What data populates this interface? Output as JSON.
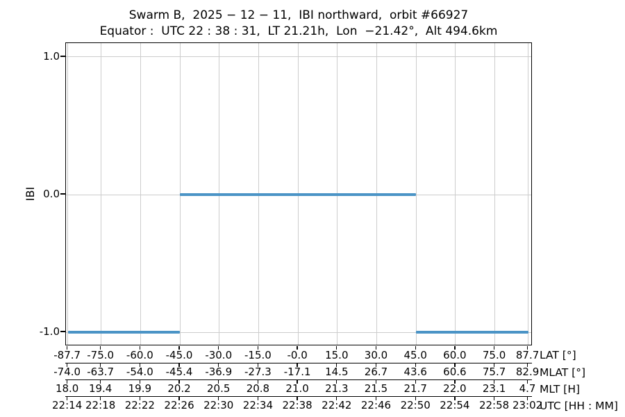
{
  "figure": {
    "title": "Swarm B,  2025 − 12 − 11,  IBI northward,  orbit #66927",
    "subtitle": "Equator :  UTC 22 : 38 : 31,  LT 21.21h,  Lon  −21.42°,  Alt 494.6km"
  },
  "chart_data": {
    "type": "line",
    "title": "Swarm B, 2025-12-11, IBI northward, orbit #66927",
    "subtitle": "Equator: UTC 22:38:31, LT 21.21h, Lon -21.42°, Alt 494.6km",
    "ylabel": "IBI",
    "ylim": [
      -1.1,
      1.1
    ],
    "xlim_lat": [
      -88.4,
      89.4
    ],
    "grid": true,
    "legend": "none",
    "yticks": [
      {
        "value": 1.0,
        "label": "1.0"
      },
      {
        "value": 0.0,
        "label": "0.0"
      },
      {
        "value": -1.0,
        "label": "-1.0"
      }
    ],
    "x_tick_lat_values": [
      -87.7,
      -75.0,
      -60.0,
      -45.0,
      -30.0,
      -15.0,
      0.0,
      15.0,
      30.0,
      45.0,
      60.0,
      75.0,
      87.7
    ],
    "x_axes": [
      {
        "label": "LAT [°]",
        "ticks": [
          "-87.7",
          "-75.0",
          "-60.0",
          "-45.0",
          "-30.0",
          "-15.0",
          "-0.0",
          "15.0",
          "30.0",
          "45.0",
          "60.0",
          "75.0",
          "87.7"
        ]
      },
      {
        "label": "MLAT [°]",
        "ticks": [
          "-74.0",
          "-63.7",
          "-54.0",
          "-45.4",
          "-36.9",
          "-27.3",
          "-17.1",
          "14.5",
          "26.7",
          "43.6",
          "60.6",
          "75.7",
          "82.9"
        ]
      },
      {
        "label": "MLT [H]",
        "ticks": [
          "18.0",
          "19.4",
          "19.9",
          "20.2",
          "20.5",
          "20.8",
          "21.0",
          "21.3",
          "21.5",
          "21.7",
          "22.0",
          "23.1",
          "4.7"
        ]
      },
      {
        "label": "UTC [HH : MM]",
        "ticks": [
          "22:14",
          "22:18",
          "22:22",
          "22:26",
          "22:30",
          "22:34",
          "22:38",
          "22:42",
          "22:46",
          "22:50",
          "22:54",
          "22:58",
          "23:02"
        ]
      }
    ],
    "series": [
      {
        "name": "IBI",
        "color": "#4b94c6",
        "segments": [
          {
            "lat_start": -87.7,
            "lat_end": -45.0,
            "value": -1.0,
            "utc_start": "22:14",
            "utc_end": "22:26"
          },
          {
            "lat_start": -45.0,
            "lat_end": 45.0,
            "value": 0.0,
            "utc_start": "22:26",
            "utc_end": "22:50"
          },
          {
            "lat_start": 45.0,
            "lat_end": 87.7,
            "value": -1.0,
            "utc_start": "22:50",
            "utc_end": "23:02"
          }
        ]
      }
    ]
  },
  "style": {
    "background": "#ffffff",
    "grid_color": "#cccccc",
    "axis_color": "#000000",
    "line_color": "#4b94c6"
  }
}
